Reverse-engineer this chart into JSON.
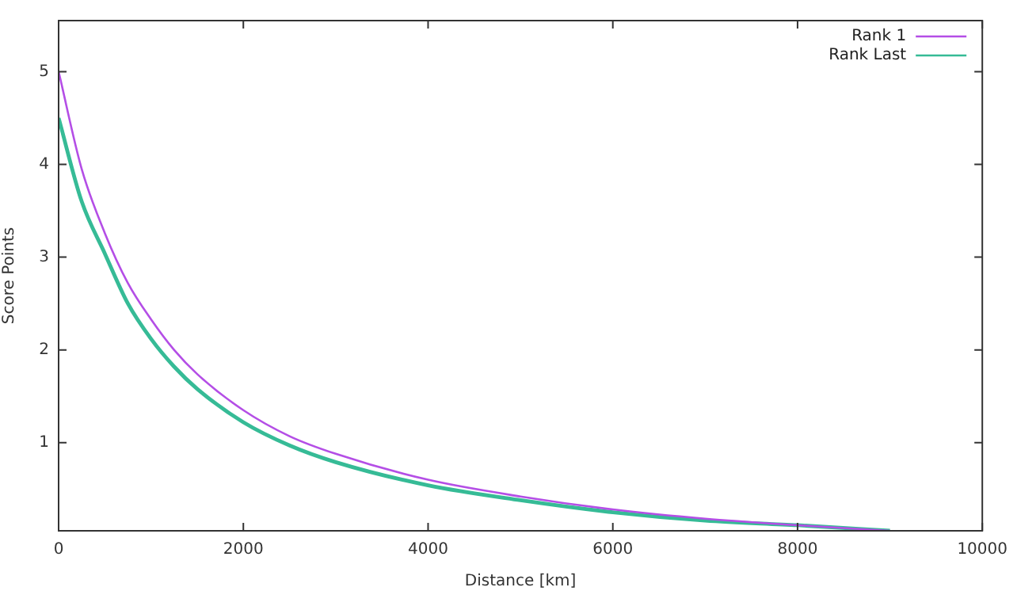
{
  "chart_data": {
    "type": "line",
    "xlabel": "Distance [km]",
    "ylabel": "Score Points",
    "x": [
      0,
      250,
      500,
      750,
      1000,
      1250,
      1500,
      2000,
      2500,
      3000,
      4000,
      5000,
      6000,
      7000,
      8000,
      9000
    ],
    "series": [
      {
        "name": "Rank 1",
        "color": "#b44ee6",
        "values": [
          5.0,
          3.95,
          3.26,
          2.72,
          2.33,
          2.0,
          1.74,
          1.35,
          1.07,
          0.88,
          0.6,
          0.42,
          0.28,
          0.18,
          0.11,
          0.05
        ]
      },
      {
        "name": "Rank Last",
        "color": "#36bb96",
        "values": [
          4.5,
          3.6,
          3.04,
          2.5,
          2.12,
          1.82,
          1.58,
          1.22,
          0.97,
          0.79,
          0.54,
          0.38,
          0.25,
          0.16,
          0.11,
          0.05
        ]
      }
    ],
    "xlim": [
      0,
      10000
    ],
    "xticks": [
      0,
      2000,
      4000,
      6000,
      8000,
      10000
    ],
    "ylim": [
      0.05,
      5.55
    ],
    "yticks": [
      1,
      2,
      3,
      4,
      5
    ],
    "grid": false,
    "legend": "top right",
    "marker": "none",
    "line_style": "solid"
  }
}
